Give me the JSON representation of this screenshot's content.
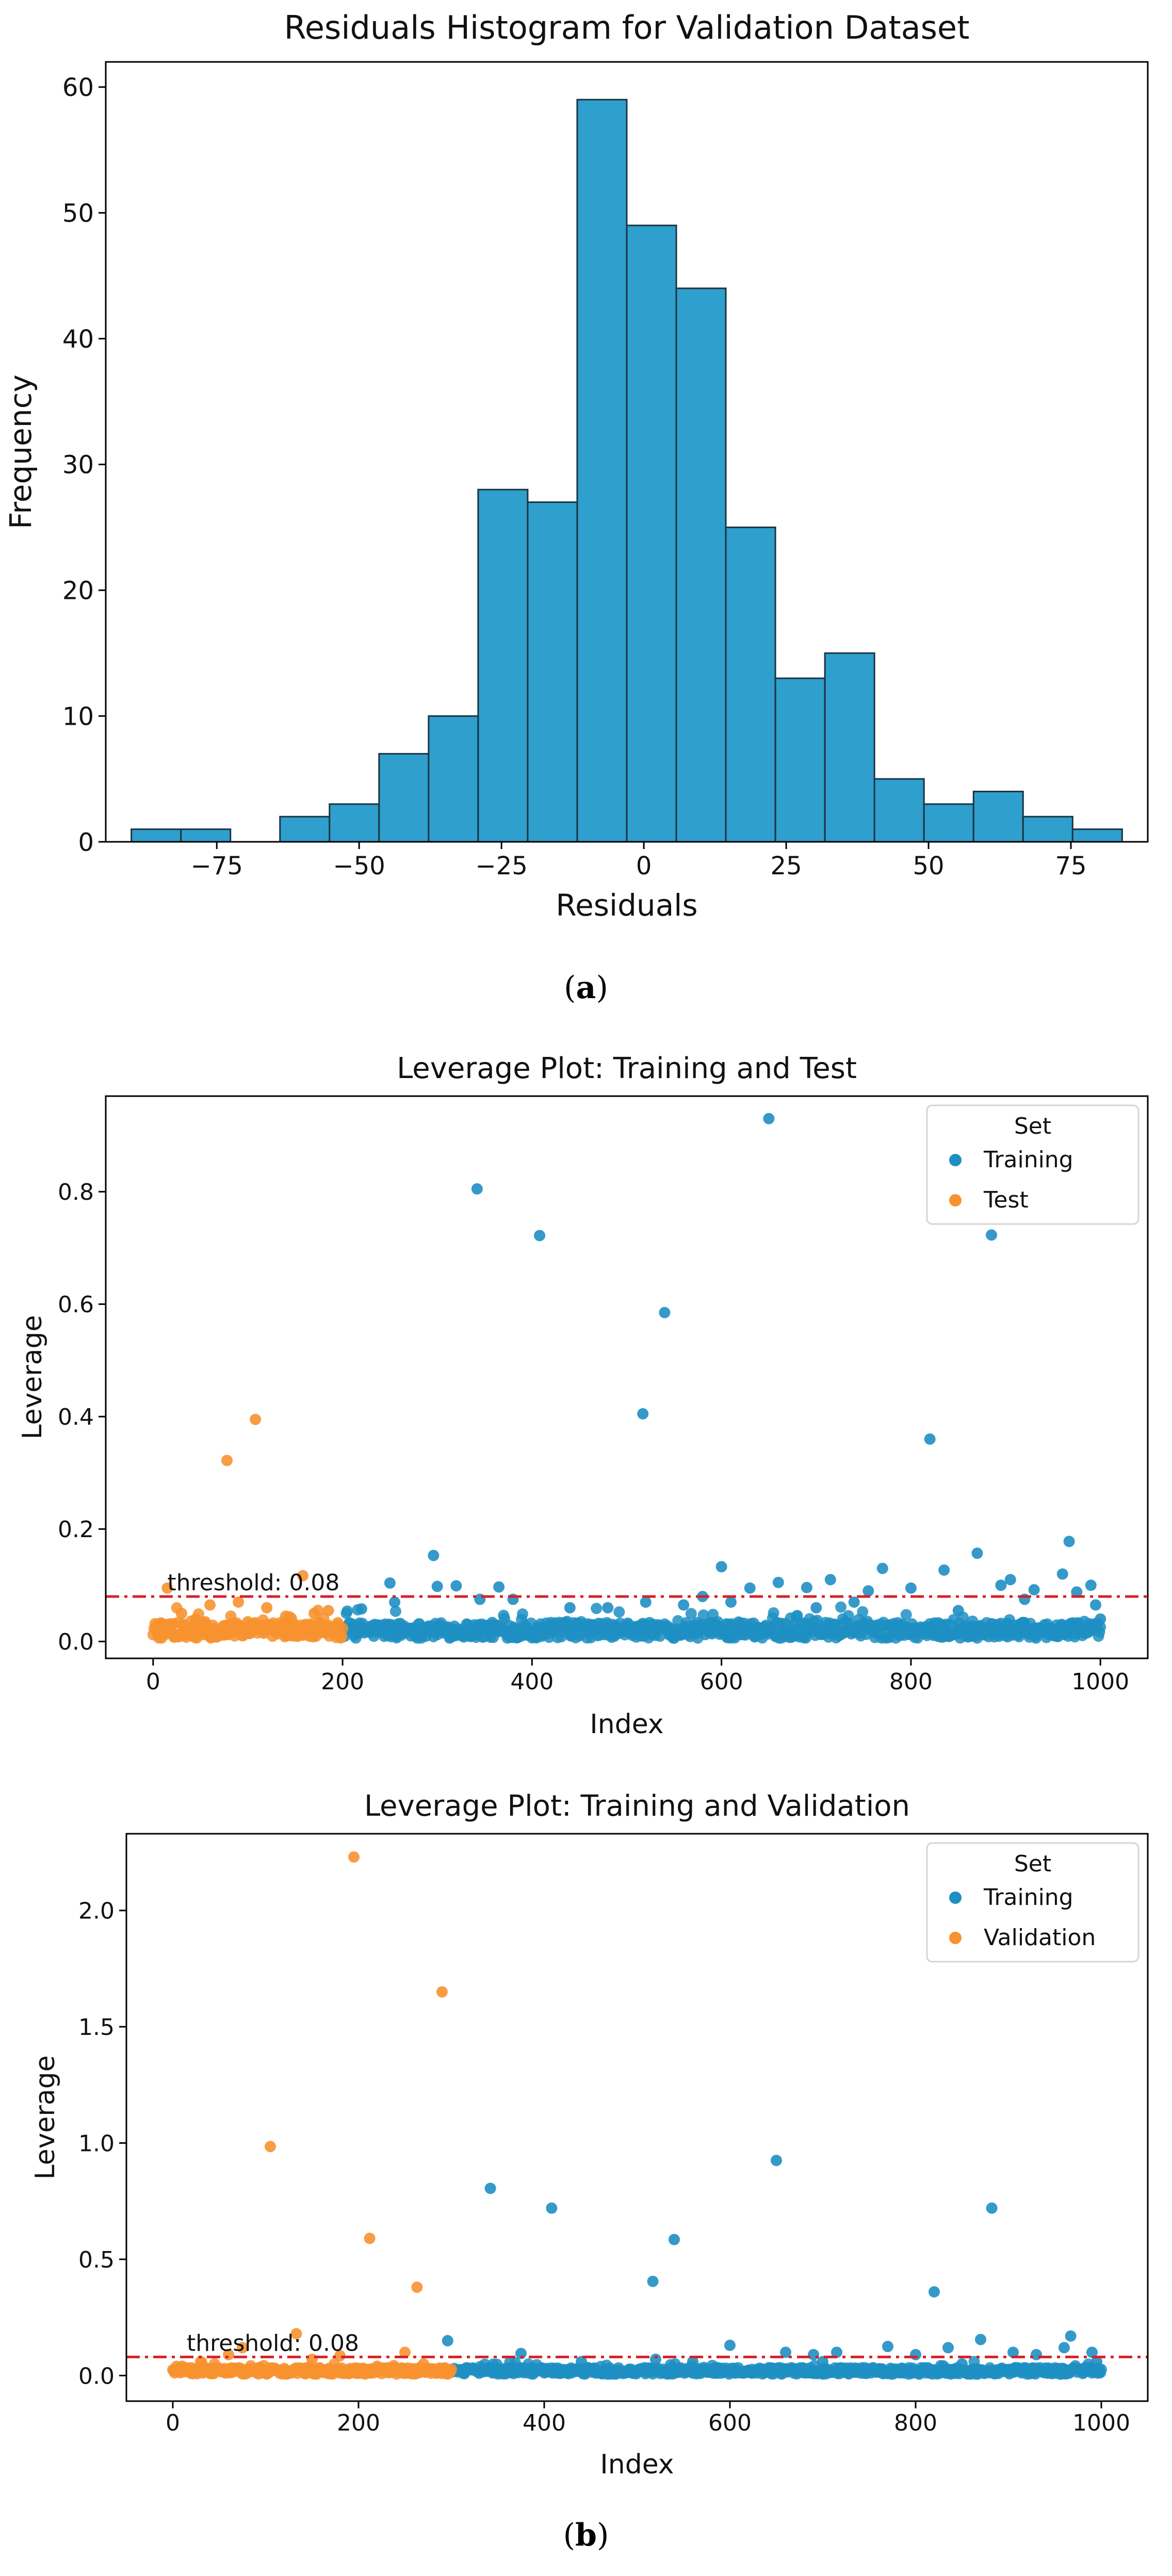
{
  "captions": {
    "a_open": "(",
    "a_letter": "a",
    "a_close": ")",
    "b_open": "(",
    "b_letter": "b",
    "b_close": ")"
  },
  "colors": {
    "bar": "#2f9fcd",
    "bar_edge": "#1b3442",
    "training": "#1f8fc3",
    "other": "#f7922f",
    "threshold": "#d92027"
  },
  "chart_data": [
    {
      "type": "bar",
      "title": "Residuals Histogram for Validation Dataset",
      "xlabel": "Residuals",
      "ylabel": "Frequency",
      "bins": [
        {
          "x0": -90,
          "x1": -81.3,
          "count": 1
        },
        {
          "x0": -81.3,
          "x1": -72.6,
          "count": 1
        },
        {
          "x0": -72.6,
          "x1": -63.9,
          "count": 0
        },
        {
          "x0": -63.9,
          "x1": -55.2,
          "count": 2
        },
        {
          "x0": -55.2,
          "x1": -46.5,
          "count": 3
        },
        {
          "x0": -46.5,
          "x1": -37.8,
          "count": 7
        },
        {
          "x0": -37.8,
          "x1": -29.1,
          "count": 10
        },
        {
          "x0": -29.1,
          "x1": -20.4,
          "count": 28
        },
        {
          "x0": -20.4,
          "x1": -11.7,
          "count": 27
        },
        {
          "x0": -11.7,
          "x1": -3.0,
          "count": 59
        },
        {
          "x0": -3.0,
          "x1": 5.7,
          "count": 49
        },
        {
          "x0": 5.7,
          "x1": 14.4,
          "count": 44
        },
        {
          "x0": 14.4,
          "x1": 23.1,
          "count": 25
        },
        {
          "x0": 23.1,
          "x1": 31.8,
          "count": 13
        },
        {
          "x0": 31.8,
          "x1": 40.5,
          "count": 15
        },
        {
          "x0": 40.5,
          "x1": 49.2,
          "count": 5
        },
        {
          "x0": 49.2,
          "x1": 57.9,
          "count": 3
        },
        {
          "x0": 57.9,
          "x1": 66.6,
          "count": 4
        },
        {
          "x0": 66.6,
          "x1": 75.3,
          "count": 2
        },
        {
          "x0": 75.3,
          "x1": 84.0,
          "count": 1
        }
      ],
      "xlim": [
        -94.5,
        88.5
      ],
      "ylim": [
        0,
        62
      ],
      "xticks": [
        -75,
        -50,
        -25,
        0,
        25,
        50,
        75
      ],
      "xtick_labels": [
        "−75",
        "−50",
        "−25",
        "0",
        "25",
        "50",
        "75"
      ],
      "yticks": [
        0,
        10,
        20,
        30,
        40,
        50,
        60
      ],
      "ytick_labels": [
        "0",
        "10",
        "20",
        "30",
        "40",
        "50",
        "60"
      ]
    },
    {
      "type": "scatter",
      "title": "Leverage Plot: Training and Test",
      "xlabel": "Index",
      "ylabel": "Leverage",
      "xlim": [
        -50,
        1050
      ],
      "ylim": [
        -0.03,
        0.97
      ],
      "xticks": [
        0,
        200,
        400,
        600,
        800,
        1000
      ],
      "xtick_labels": [
        "0",
        "200",
        "400",
        "600",
        "800",
        "1000"
      ],
      "yticks": [
        0.0,
        0.2,
        0.4,
        0.6,
        0.8
      ],
      "ytick_labels": [
        "0.0",
        "0.2",
        "0.4",
        "0.6",
        "0.8"
      ],
      "threshold": 0.08,
      "threshold_label": "threshold: 0.08",
      "legend_title": "Set",
      "legend_position": "top-right",
      "series": [
        {
          "name": "Training",
          "color": "#1f8fc3",
          "index_range": [
            200,
            1000
          ],
          "points": [
            [
              650,
              0.93
            ],
            [
              342,
              0.805
            ],
            [
              408,
              0.722
            ],
            [
              885,
              0.723
            ],
            [
              540,
              0.585
            ],
            [
              517,
              0.405
            ],
            [
              820,
              0.36
            ],
            [
              967,
              0.178
            ],
            [
              870,
              0.157
            ],
            [
              296,
              0.153
            ],
            [
              600,
              0.133
            ],
            [
              770,
              0.13
            ],
            [
              835,
              0.127
            ],
            [
              960,
              0.12
            ],
            [
              905,
              0.11
            ],
            [
              715,
              0.11
            ],
            [
              660,
              0.105
            ],
            [
              250,
              0.104
            ],
            [
              895,
              0.1
            ],
            [
              990,
              0.1
            ],
            [
              320,
              0.099
            ],
            [
              300,
              0.098
            ],
            [
              365,
              0.097
            ],
            [
              690,
              0.096
            ],
            [
              630,
              0.095
            ],
            [
              800,
              0.095
            ],
            [
              930,
              0.092
            ],
            [
              755,
              0.09
            ],
            [
              975,
              0.088
            ],
            [
              520,
              0.07
            ],
            [
              380,
              0.075
            ],
            [
              255,
              0.07
            ],
            [
              560,
              0.065
            ],
            [
              700,
              0.06
            ],
            [
              440,
              0.06
            ],
            [
              220,
              0.058
            ],
            [
              850,
              0.055
            ],
            [
              610,
              0.07
            ],
            [
              995,
              0.065
            ],
            [
              345,
              0.075
            ],
            [
              480,
              0.06
            ],
            [
              580,
              0.08
            ],
            [
              740,
              0.07
            ],
            [
              920,
              0.075
            ],
            [
              1000,
              0.04
            ]
          ],
          "base_level": 0.02
        },
        {
          "name": "Test",
          "color": "#f7922f",
          "index_range": [
            0,
            200
          ],
          "points": [
            [
              108,
              0.395
            ],
            [
              78,
              0.322
            ],
            [
              158,
              0.117
            ],
            [
              15,
              0.095
            ],
            [
              60,
              0.065
            ],
            [
              30,
              0.05
            ],
            [
              120,
              0.06
            ],
            [
              185,
              0.055
            ],
            [
              90,
              0.07
            ],
            [
              45,
              0.04
            ],
            [
              140,
              0.045
            ],
            [
              170,
              0.05
            ],
            [
              5,
              0.03
            ],
            [
              100,
              0.035
            ],
            [
              195,
              0.03
            ]
          ],
          "base_level": 0.02
        }
      ]
    },
    {
      "type": "scatter",
      "title": "Leverage Plot: Training and Validation",
      "xlabel": "Index",
      "ylabel": "Leverage",
      "xlim": [
        -50,
        1050
      ],
      "ylim": [
        -0.11,
        2.33
      ],
      "xticks": [
        0,
        200,
        400,
        600,
        800,
        1000
      ],
      "xtick_labels": [
        "0",
        "200",
        "400",
        "600",
        "800",
        "1000"
      ],
      "yticks": [
        0.0,
        0.5,
        1.0,
        1.5,
        2.0
      ],
      "ytick_labels": [
        "0.0",
        "0.5",
        "1.0",
        "1.5",
        "2.0"
      ],
      "threshold": 0.08,
      "threshold_label": "threshold: 0.08",
      "legend_title": "Set",
      "legend_position": "top-right",
      "series": [
        {
          "name": "Training",
          "color": "#1f8fc3",
          "index_range": [
            300,
            1000
          ],
          "points": [
            [
              650,
              0.925
            ],
            [
              342,
              0.805
            ],
            [
              408,
              0.72
            ],
            [
              882,
              0.72
            ],
            [
              540,
              0.585
            ],
            [
              517,
              0.405
            ],
            [
              820,
              0.36
            ],
            [
              967,
              0.17
            ],
            [
              870,
              0.155
            ],
            [
              296,
              0.15
            ],
            [
              600,
              0.13
            ],
            [
              770,
              0.125
            ],
            [
              835,
              0.12
            ],
            [
              960,
              0.12
            ],
            [
              905,
              0.1
            ],
            [
              715,
              0.1
            ],
            [
              660,
              0.1
            ],
            [
              990,
              0.1
            ],
            [
              375,
              0.095
            ],
            [
              690,
              0.09
            ],
            [
              800,
              0.09
            ],
            [
              930,
              0.09
            ],
            [
              520,
              0.07
            ],
            [
              560,
              0.06
            ],
            [
              700,
              0.06
            ],
            [
              440,
              0.06
            ],
            [
              850,
              0.05
            ],
            [
              995,
              0.06
            ]
          ],
          "base_level": 0.02
        },
        {
          "name": "Validation",
          "color": "#f7922f",
          "index_range": [
            0,
            300
          ],
          "points": [
            [
              195,
              2.23
            ],
            [
              290,
              1.65
            ],
            [
              105,
              0.985
            ],
            [
              212,
              0.59
            ],
            [
              263,
              0.38
            ],
            [
              133,
              0.18
            ],
            [
              75,
              0.12
            ],
            [
              250,
              0.1
            ],
            [
              60,
              0.09
            ],
            [
              180,
              0.085
            ],
            [
              30,
              0.06
            ],
            [
              150,
              0.07
            ],
            [
              270,
              0.05
            ],
            [
              10,
              0.04
            ],
            [
              220,
              0.04
            ]
          ],
          "base_level": 0.02
        }
      ]
    }
  ]
}
